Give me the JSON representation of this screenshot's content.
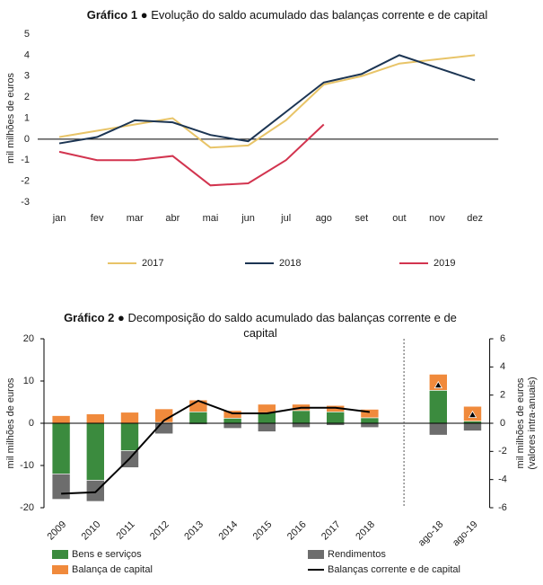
{
  "chart_data": [
    {
      "type": "line",
      "title_number": "Gráfico 1 ●",
      "title": "Evolução do saldo acumulado das balanças corrente e de capital",
      "ylabel": "mil milhões de euros",
      "categories": [
        "jan",
        "fev",
        "mar",
        "abr",
        "mai",
        "jun",
        "jul",
        "ago",
        "set",
        "out",
        "nov",
        "dez"
      ],
      "ylim": [
        -3,
        5
      ],
      "yticks": [
        -3,
        -2,
        -1,
        0,
        1,
        2,
        3,
        4,
        5
      ],
      "series": [
        {
          "name": "2017",
          "color": "#e8c468",
          "values": [
            0.1,
            0.4,
            0.7,
            1.0,
            -0.4,
            -0.3,
            0.9,
            2.6,
            3.0,
            3.6,
            3.8,
            4.0
          ]
        },
        {
          "name": "2018",
          "color": "#1c3553",
          "values": [
            -0.2,
            0.1,
            0.9,
            0.8,
            0.2,
            -0.1,
            1.3,
            2.7,
            3.1,
            4.0,
            3.4,
            2.8
          ]
        },
        {
          "name": "2019",
          "color": "#d2344f",
          "values": [
            -0.6,
            -1.0,
            -1.0,
            -0.8,
            -2.2,
            -2.1,
            -1.0,
            0.7,
            null,
            null,
            null,
            null
          ]
        }
      ]
    },
    {
      "type": "combo",
      "title_number": "Gráfico 2 ●",
      "title": "Decomposição do saldo acumulado das balanças corrente e de capital",
      "ylabel": "mil milhões de euros",
      "y2label": [
        "mil milhões de euros",
        "(valores intra-anuais)"
      ],
      "categories": [
        "2009",
        "2010",
        "2011",
        "2012",
        "2013",
        "2014",
        "2015",
        "2016",
        "2017",
        "2018",
        null,
        "ago-18",
        "ago-19"
      ],
      "ylim": [
        -20,
        20
      ],
      "yticks": [
        -20,
        -10,
        0,
        10,
        20
      ],
      "y2lim": [
        -6,
        6
      ],
      "y2ticks": [
        -6,
        -4,
        -2,
        0,
        2,
        4,
        6
      ],
      "series": [
        {
          "name": "Bens e serviços",
          "kind": "bar",
          "color": "#3b8b3e",
          "values": [
            -12,
            -13.5,
            -6.5,
            0.2,
            2.7,
            1.2,
            2.5,
            3.0,
            2.7,
            1.3,
            null,
            7.8,
            0.5
          ]
        },
        {
          "name": "Rendimentos",
          "kind": "bar",
          "color": "#6d6d6d",
          "values": [
            -6,
            -5,
            -4,
            -2.5,
            -0.3,
            -1.2,
            -2,
            -1,
            -0.5,
            -1,
            null,
            -2.8,
            -1.8
          ]
        },
        {
          "name": "Balança de capital",
          "kind": "bar",
          "color": "#f08a3c",
          "values": [
            1.8,
            2.2,
            2.6,
            3.2,
            2.8,
            1.8,
            2.0,
            1.5,
            1.5,
            2.0,
            null,
            3.8,
            3.5
          ]
        },
        {
          "name": "Balanças corrente e de capital",
          "kind": "line",
          "axis": "y2",
          "color": "#000000",
          "values": [
            -5.0,
            -4.9,
            -2.5,
            0.2,
            1.6,
            0.7,
            0.7,
            1.1,
            1.1,
            0.8,
            null,
            null,
            null
          ],
          "marker_values": [
            null,
            null,
            null,
            null,
            null,
            null,
            null,
            null,
            null,
            null,
            null,
            2.7,
            0.6
          ]
        }
      ]
    }
  ]
}
